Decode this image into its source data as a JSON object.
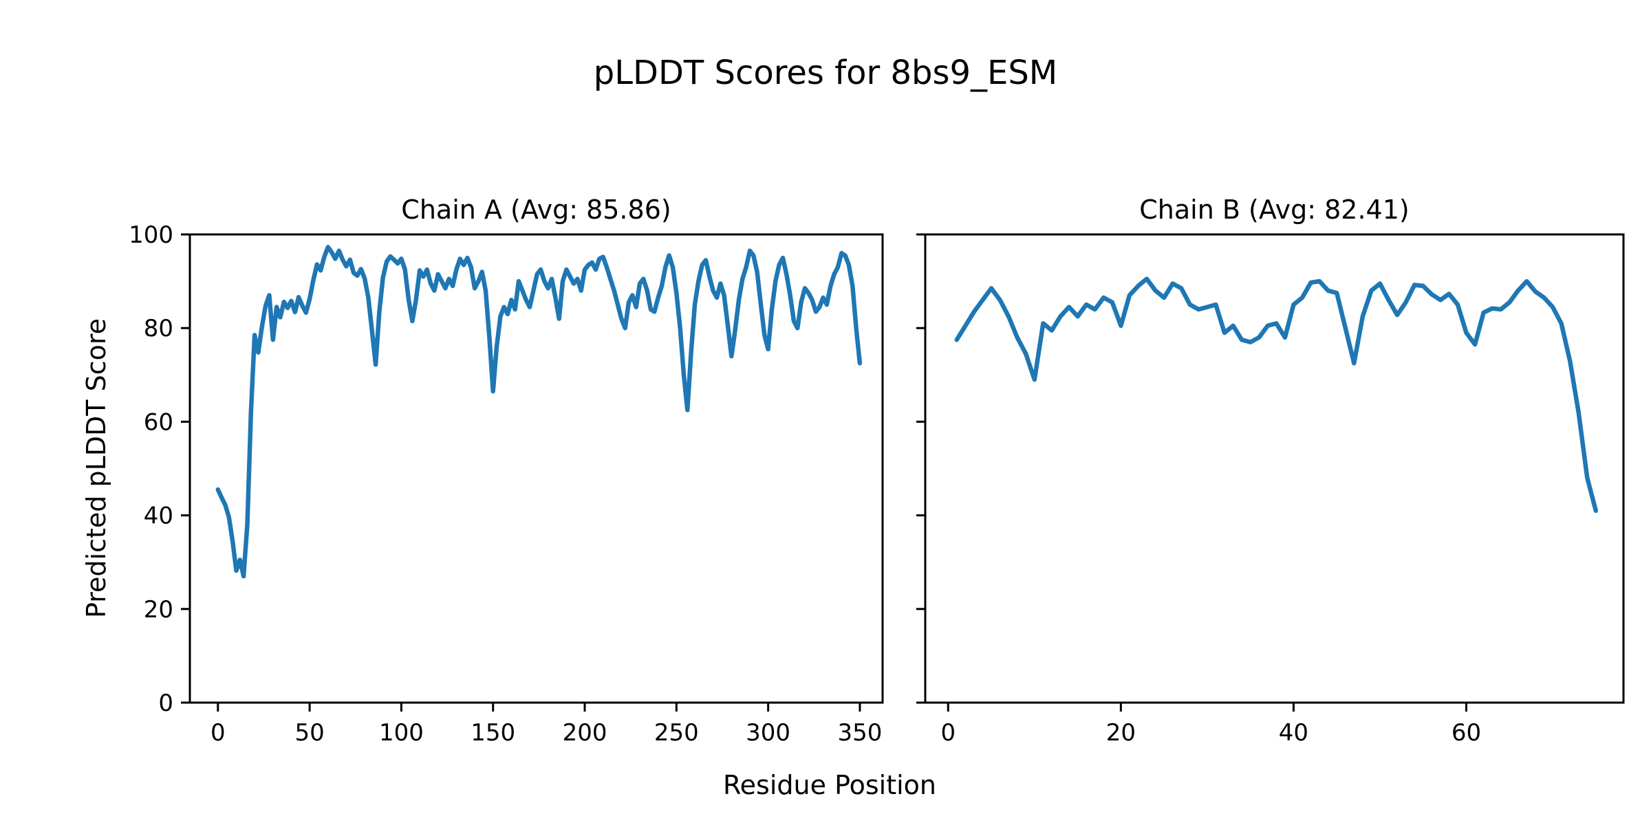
{
  "figure": {
    "suptitle": "pLDDT Scores for 8bs9_ESM",
    "xlabel": "Residue Position",
    "ylabel": "Predicted pLDDT Score",
    "background_color": "#ffffff",
    "text_color": "#000000",
    "spine_color": "#000000"
  },
  "chart_data": [
    {
      "type": "line",
      "title": "Chain A (Avg: 85.86)",
      "average": 85.86,
      "line_color": "#1f77b4",
      "grid": false,
      "legend": "none",
      "xlim": [
        -15.3,
        362.4
      ],
      "ylim": [
        0,
        100
      ],
      "xticks": [
        0,
        50,
        100,
        150,
        200,
        250,
        300,
        350
      ],
      "yticks": [
        0,
        20,
        40,
        60,
        80,
        100
      ],
      "show_ytick_labels": true,
      "series": [
        {
          "name": "Chain A pLDDT",
          "x_start": 0,
          "x_step": 2,
          "values": [
            45.5,
            43.8,
            42.2,
            39.6,
            34.5,
            28.2,
            30.5,
            27.0,
            38.0,
            62.0,
            78.5,
            74.8,
            80.3,
            84.8,
            87.0,
            77.5,
            84.5,
            82.3,
            85.6,
            84.3,
            85.8,
            83.4,
            86.6,
            84.8,
            83.3,
            86.2,
            90.2,
            93.6,
            92.3,
            95.2,
            97.3,
            96.2,
            94.8,
            96.5,
            94.6,
            93.2,
            94.6,
            91.8,
            91.2,
            92.6,
            90.6,
            86.5,
            79.5,
            72.2,
            83.5,
            90.8,
            94.2,
            95.3,
            94.6,
            93.8,
            94.8,
            92.5,
            86.0,
            81.5,
            86.0,
            92.3,
            91.0,
            92.5,
            89.5,
            88.0,
            91.5,
            90.0,
            88.5,
            90.5,
            89.0,
            92.5,
            94.8,
            93.5,
            95.0,
            93.0,
            88.5,
            90.0,
            92.0,
            88.0,
            78.0,
            66.5,
            76.0,
            82.5,
            84.5,
            83.0,
            86.0,
            84.0,
            90.0,
            88.0,
            86.0,
            84.5,
            88.0,
            91.5,
            92.5,
            90.0,
            88.5,
            90.5,
            86.5,
            82.0,
            90.0,
            92.5,
            91.0,
            89.5,
            90.5,
            88.0,
            92.5,
            93.5,
            94.0,
            92.5,
            94.8,
            95.2,
            93.0,
            90.5,
            88.0,
            85.0,
            82.0,
            80.0,
            85.5,
            87.0,
            84.5,
            89.5,
            90.5,
            88.0,
            84.0,
            83.5,
            86.5,
            89.0,
            93.0,
            95.5,
            93.0,
            87.5,
            80.0,
            70.0,
            62.5,
            75.0,
            85.0,
            90.0,
            93.5,
            94.5,
            91.0,
            88.0,
            86.5,
            89.5,
            87.0,
            80.5,
            74.0,
            79.5,
            86.0,
            90.5,
            93.0,
            96.5,
            95.5,
            92.0,
            85.0,
            78.5,
            75.5,
            84.0,
            90.0,
            93.5,
            95.0,
            91.5,
            87.0,
            81.5,
            80.0,
            85.5,
            88.5,
            87.5,
            86.0,
            83.5,
            84.5,
            86.5,
            85.0,
            89.0,
            91.5,
            93.0,
            96.0,
            95.5,
            93.5,
            89.0,
            80.0,
            72.5
          ]
        }
      ]
    },
    {
      "type": "line",
      "title": "Chain B (Avg: 82.41)",
      "average": 82.41,
      "line_color": "#1f77b4",
      "grid": false,
      "legend": "none",
      "xlim": [
        -2.65,
        78.2
      ],
      "ylim": [
        0,
        100
      ],
      "xticks": [
        0,
        20,
        40,
        60
      ],
      "yticks": [
        0,
        20,
        40,
        60,
        80,
        100
      ],
      "show_ytick_labels": false,
      "series": [
        {
          "name": "Chain B pLDDT",
          "x_start": 1,
          "x_step": 1,
          "values": [
            77.5,
            80.5,
            83.5,
            86.0,
            88.5,
            86.0,
            82.5,
            78.0,
            74.5,
            69.0,
            81.0,
            79.5,
            82.5,
            84.5,
            82.5,
            85.0,
            84.0,
            86.5,
            85.5,
            80.5,
            87.0,
            89.0,
            90.5,
            88.0,
            86.5,
            89.5,
            88.5,
            85.0,
            84.0,
            84.5,
            85.0,
            79.0,
            80.5,
            77.5,
            77.0,
            78.0,
            80.5,
            81.0,
            78.0,
            85.0,
            86.5,
            89.7,
            90.0,
            88.0,
            87.5,
            80.0,
            72.5,
            82.5,
            88.0,
            89.5,
            86.0,
            82.8,
            85.5,
            89.2,
            89.0,
            87.2,
            86.0,
            87.3,
            85.0,
            79.0,
            76.5,
            83.3,
            84.2,
            84.0,
            85.5,
            88.0,
            90.0,
            87.8,
            86.5,
            84.5,
            81.0,
            73.0,
            62.0,
            48.0,
            41.0
          ]
        }
      ]
    }
  ]
}
